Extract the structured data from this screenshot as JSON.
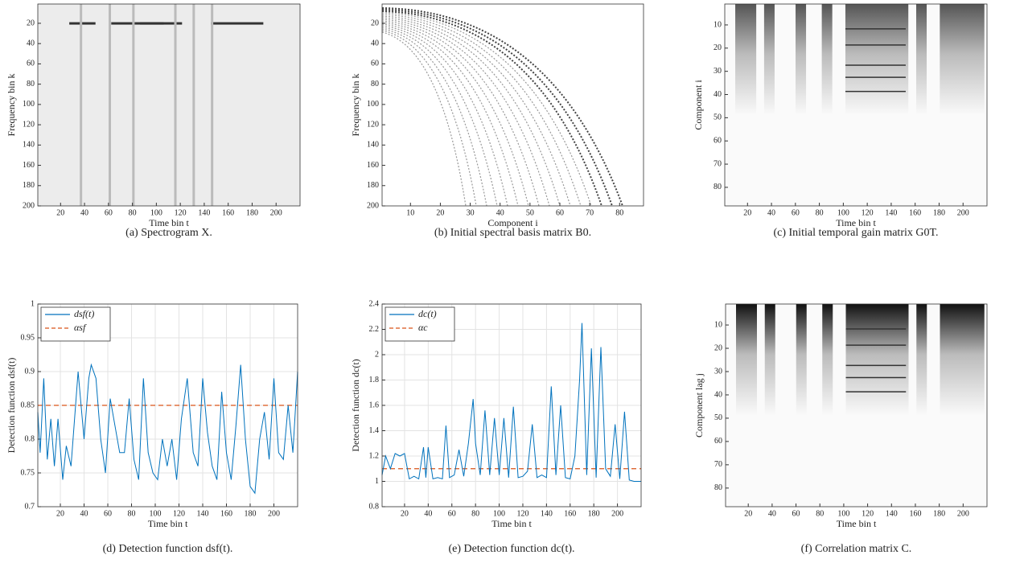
{
  "chart_data": [
    {
      "type": "heatmap",
      "caption": "(a) Spectrogram X.",
      "xlabel": "Time bin t",
      "ylabel": "Frequency bin k",
      "xlim": [
        1,
        220
      ],
      "xticks": [
        20,
        40,
        60,
        80,
        100,
        120,
        140,
        160,
        180,
        200
      ],
      "ylim": [
        200,
        1
      ],
      "yticks": [
        20,
        40,
        60,
        80,
        100,
        120,
        140,
        160,
        180,
        200
      ]
    },
    {
      "type": "heatmap",
      "caption": "(b) Initial spectral basis matrix B0.",
      "xlabel": "Component i",
      "ylabel": "Frequency bin k",
      "xlim": [
        0.5,
        88
      ],
      "xticks": [
        10,
        20,
        30,
        40,
        50,
        60,
        70,
        80
      ],
      "ylim": [
        200,
        1
      ],
      "yticks": [
        20,
        40,
        60,
        80,
        100,
        120,
        140,
        160,
        180,
        200
      ]
    },
    {
      "type": "heatmap",
      "caption": "(c) Initial temporal gain matrix G0T.",
      "xlabel": "Time bin t",
      "ylabel": "Component i",
      "xlim": [
        1,
        220
      ],
      "xticks": [
        20,
        40,
        60,
        80,
        100,
        120,
        140,
        160,
        180,
        200
      ],
      "ylim": [
        88,
        1
      ],
      "yticks": [
        10,
        20,
        30,
        40,
        50,
        60,
        70,
        80
      ]
    },
    {
      "type": "line",
      "caption": "(d) Detection function dsf(t).",
      "xlabel": "Time bin t",
      "ylabel": "Detection function dsf(t)",
      "xlim": [
        1,
        220
      ],
      "xticks": [
        20,
        40,
        60,
        80,
        100,
        120,
        140,
        160,
        180,
        200
      ],
      "ylim": [
        0.7,
        1
      ],
      "yticks": [
        0.7,
        0.75,
        0.8,
        0.85,
        0.9,
        0.95,
        1
      ],
      "grid": true,
      "x": [
        1,
        3,
        6,
        9,
        12,
        15,
        18,
        22,
        25,
        29,
        35,
        40,
        44,
        46,
        50,
        54,
        58,
        62,
        66,
        70,
        74,
        78,
        82,
        86,
        90,
        94,
        98,
        102,
        106,
        110,
        114,
        118,
        122,
        127,
        132,
        136,
        140,
        144,
        148,
        152,
        156,
        160,
        164,
        168,
        172,
        176,
        180,
        184,
        188,
        192,
        196,
        200,
        204,
        208,
        212,
        216,
        220
      ],
      "series": [
        {
          "name": "dsf(t)",
          "color": "#0072bd",
          "values": [
            0.84,
            0.78,
            0.89,
            0.77,
            0.83,
            0.76,
            0.83,
            0.74,
            0.79,
            0.76,
            0.9,
            0.8,
            0.89,
            0.91,
            0.89,
            0.8,
            0.75,
            0.86,
            0.82,
            0.78,
            0.78,
            0.86,
            0.77,
            0.74,
            0.89,
            0.78,
            0.75,
            0.74,
            0.8,
            0.76,
            0.8,
            0.74,
            0.83,
            0.89,
            0.78,
            0.76,
            0.89,
            0.81,
            0.76,
            0.74,
            0.87,
            0.78,
            0.74,
            0.82,
            0.91,
            0.8,
            0.73,
            0.72,
            0.8,
            0.84,
            0.77,
            0.89,
            0.78,
            0.77,
            0.85,
            0.78,
            0.9
          ]
        }
      ],
      "threshold": {
        "name": "αsf",
        "color": "#d95319",
        "value": 0.85
      }
    },
    {
      "type": "line",
      "caption": "(e) Detection function dc(t).",
      "xlabel": "Time bin t",
      "ylabel": "Detection function dc(t)",
      "xlim": [
        1,
        220
      ],
      "xticks": [
        20,
        40,
        60,
        80,
        100,
        120,
        140,
        160,
        180,
        200
      ],
      "ylim": [
        0.8,
        2.4
      ],
      "yticks": [
        0.8,
        1,
        1.2,
        1.4,
        1.6,
        1.8,
        2,
        2.2,
        2.4
      ],
      "grid": true,
      "x": [
        1,
        4,
        8,
        12,
        16,
        20,
        24,
        28,
        32,
        36,
        38,
        40,
        44,
        48,
        52,
        55,
        58,
        62,
        66,
        70,
        74,
        78,
        80,
        84,
        88,
        92,
        96,
        100,
        104,
        108,
        112,
        116,
        120,
        124,
        128,
        132,
        136,
        140,
        144,
        148,
        152,
        156,
        160,
        164,
        168,
        170,
        174,
        178,
        182,
        186,
        190,
        194,
        198,
        202,
        206,
        210,
        214,
        218,
        220
      ],
      "series": [
        {
          "name": "dc(t)",
          "color": "#0072bd",
          "values": [
            1.05,
            1.2,
            1.1,
            1.22,
            1.2,
            1.22,
            1.02,
            1.04,
            1.02,
            1.27,
            1.03,
            1.27,
            1.02,
            1.03,
            1.02,
            1.44,
            1.03,
            1.05,
            1.25,
            1.04,
            1.3,
            1.65,
            1.3,
            1.05,
            1.56,
            1.05,
            1.5,
            1.05,
            1.5,
            1.03,
            1.59,
            1.03,
            1.04,
            1.08,
            1.45,
            1.03,
            1.05,
            1.03,
            1.75,
            1.05,
            1.6,
            1.03,
            1.02,
            1.2,
            1.8,
            2.25,
            1.05,
            2.05,
            1.03,
            2.06,
            1.1,
            1.04,
            1.45,
            1.02,
            1.55,
            1.01,
            1.0,
            1.0,
            1.0
          ]
        }
      ],
      "threshold": {
        "name": "αc",
        "color": "#d95319",
        "value": 1.1
      }
    },
    {
      "type": "heatmap",
      "caption": "(f) Correlation matrix C.",
      "xlabel": "Time bin t",
      "ylabel": "Component lag j",
      "xlim": [
        1,
        220
      ],
      "xticks": [
        20,
        40,
        60,
        80,
        100,
        120,
        140,
        160,
        180,
        200
      ],
      "ylim": [
        88,
        1
      ],
      "yticks": [
        10,
        20,
        30,
        40,
        50,
        60,
        70,
        80
      ]
    }
  ]
}
